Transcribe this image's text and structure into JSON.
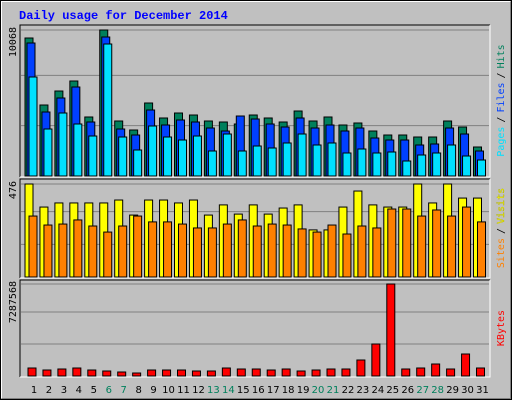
{
  "chart_data": [
    {
      "type": "bar",
      "title": "Daily usage for December 2014",
      "ylim": [
        0,
        10068
      ],
      "yticks": [
        10068
      ],
      "legend_separator": "/",
      "series": [
        {
          "name": "Hits",
          "color": "#00805c",
          "values": [
            9516,
            4896,
            5861,
            6551,
            4069,
            10068,
            3793,
            3172,
            5034,
            4000,
            4344,
            4206,
            3793,
            3724,
            3586,
            4206,
            4000,
            3724,
            4482,
            3793,
            4069,
            3517,
            3655,
            3103,
            2827,
            2827,
            2689,
            2689,
            3793,
            3379,
            2000
          ]
        },
        {
          "name": "Files",
          "color": "#0040ff",
          "values": [
            9171,
            4413,
            5379,
            6137,
            3724,
            9585,
            3241,
            2827,
            4551,
            3517,
            3862,
            3724,
            3310,
            3103,
            4137,
            3931,
            3586,
            3379,
            4000,
            3310,
            3517,
            3103,
            3310,
            2620,
            2482,
            2482,
            2138,
            2207,
            3310,
            2896,
            1724
          ]
        },
        {
          "name": "Pages",
          "color": "#00e0ff",
          "values": [
            6827,
            3241,
            4344,
            3586,
            2758,
            9102,
            2689,
            1793,
            3448,
            2689,
            2482,
            2758,
            1724,
            2896,
            1724,
            2069,
            1931,
            2276,
            2896,
            2138,
            2276,
            1586,
            1862,
            1586,
            1655,
            1034,
            1448,
            1586,
            2138,
            1379,
            1103
          ]
        }
      ]
    },
    {
      "type": "bar",
      "ylim": [
        0,
        476
      ],
      "yticks": [
        476
      ],
      "legend_separator": "/",
      "series": [
        {
          "name": "Visits",
          "color": "#ffff00",
          "values": [
            476,
            358,
            379,
            379,
            379,
            379,
            394,
            317,
            394,
            394,
            379,
            394,
            317,
            369,
            322,
            369,
            322,
            353,
            369,
            241,
            241,
            358,
            440,
            369,
            358,
            358,
            476,
            379,
            476,
            404,
            404
          ]
        },
        {
          "name": "Sites",
          "color": "#ff8000",
          "values": [
            312,
            266,
            271,
            292,
            261,
            230,
            261,
            312,
            282,
            282,
            271,
            251,
            251,
            271,
            292,
            261,
            271,
            266,
            246,
            230,
            266,
            220,
            261,
            251,
            348,
            348,
            312,
            343,
            312,
            358,
            282
          ]
        }
      ]
    },
    {
      "type": "bar",
      "ylim": [
        0,
        7287568
      ],
      "yticks": [
        7287568
      ],
      "categories": [
        "1",
        "2",
        "3",
        "4",
        "5",
        "6",
        "7",
        "8",
        "9",
        "10",
        "11",
        "12",
        "13",
        "14",
        "15",
        "16",
        "17",
        "18",
        "19",
        "20",
        "21",
        "22",
        "23",
        "24",
        "25",
        "26",
        "27",
        "28",
        "29",
        "30",
        "31"
      ],
      "category_color": "#000000",
      "highlight_categories": [
        "6",
        "7",
        "13",
        "14",
        "20",
        "21",
        "27",
        "28"
      ],
      "highlight_color": "#00805c",
      "series": [
        {
          "name": "KBytes",
          "color": "#ff0000",
          "values": [
            633704,
            475278,
            554491,
            633704,
            475278,
            396065,
            316852,
            237639,
            475278,
            475278,
            475278,
            396065,
            396065,
            633704,
            554491,
            554491,
            475278,
            554491,
            396065,
            475278,
            554491,
            554491,
            1267408,
            2534816,
            7287568,
            554491,
            633704,
            950556,
            554491,
            1742686,
            633704
          ]
        }
      ]
    }
  ]
}
